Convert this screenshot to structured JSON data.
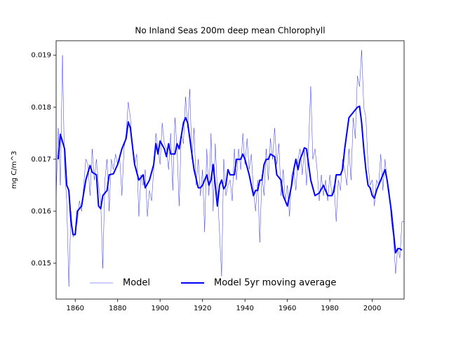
{
  "chart_data": {
    "type": "line",
    "title": "No Inland Seas 200m deep mean Chlorophyll",
    "y_label": "mg C/m^3",
    "xlim": [
      1851,
      2015
    ],
    "xticks": [
      1860,
      1880,
      1900,
      1920,
      1940,
      1960,
      1980,
      2000
    ],
    "ylim": [
      0.01431,
      0.01928
    ],
    "yticks": [
      0.015,
      0.016,
      0.017,
      0.018,
      0.019
    ],
    "legend": "lower center",
    "series": [
      {
        "name": "Model",
        "color": "#0000ff",
        "width": 0.4,
        "x": [
          1851,
          1852,
          1853,
          1854,
          1855,
          1856,
          1857,
          1858,
          1859,
          1860,
          1861,
          1862,
          1863,
          1864,
          1865,
          1866,
          1867,
          1868,
          1869,
          1870,
          1871,
          1872,
          1873,
          1874,
          1875,
          1876,
          1877,
          1878,
          1879,
          1880,
          1881,
          1882,
          1883,
          1884,
          1885,
          1886,
          1887,
          1888,
          1889,
          1890,
          1891,
          1892,
          1893,
          1894,
          1895,
          1896,
          1897,
          1898,
          1899,
          1900,
          1901,
          1902,
          1903,
          1904,
          1905,
          1906,
          1907,
          1908,
          1909,
          1910,
          1911,
          1912,
          1913,
          1914,
          1915,
          1916,
          1917,
          1918,
          1919,
          1920,
          1921,
          1922,
          1923,
          1924,
          1925,
          1926,
          1927,
          1928,
          1929,
          1930,
          1931,
          1932,
          1933,
          1934,
          1935,
          1936,
          1937,
          1938,
          1939,
          1940,
          1941,
          1942,
          1943,
          1944,
          1945,
          1946,
          1947,
          1948,
          1949,
          1950,
          1951,
          1952,
          1953,
          1954,
          1955,
          1956,
          1957,
          1958,
          1959,
          1960,
          1961,
          1962,
          1963,
          1964,
          1965,
          1966,
          1967,
          1968,
          1969,
          1970,
          1971,
          1972,
          1973,
          1974,
          1975,
          1976,
          1977,
          1978,
          1979,
          1980,
          1981,
          1982,
          1983,
          1984,
          1985,
          1986,
          1987,
          1988,
          1989,
          1990,
          1991,
          1992,
          1993,
          1994,
          1995,
          1996,
          1997,
          1998,
          1999,
          2000,
          2001,
          2002,
          2003,
          2004,
          2005,
          2006,
          2007,
          2008,
          2009,
          2010,
          2011,
          2012,
          2013,
          2014,
          2015
        ],
        "values": [
          0.0163,
          0.0176,
          0.0165,
          0.019,
          0.0168,
          0.0162,
          0.01455,
          0.016,
          0.0155,
          0.0156,
          0.0158,
          0.0162,
          0.016,
          0.0165,
          0.017,
          0.0169,
          0.0163,
          0.0172,
          0.0166,
          0.017,
          0.0165,
          0.0162,
          0.0149,
          0.0166,
          0.017,
          0.016,
          0.017,
          0.0168,
          0.0171,
          0.0169,
          0.017,
          0.0163,
          0.0172,
          0.0175,
          0.0181,
          0.0178,
          0.0172,
          0.0169,
          0.0171,
          0.0159,
          0.0167,
          0.0165,
          0.0168,
          0.0159,
          0.0164,
          0.0162,
          0.0168,
          0.0175,
          0.0172,
          0.0169,
          0.0177,
          0.0173,
          0.0172,
          0.0168,
          0.0175,
          0.0164,
          0.0178,
          0.0172,
          0.0161,
          0.0175,
          0.0173,
          0.0182,
          0.0176,
          0.01835,
          0.017,
          0.0176,
          0.0165,
          0.017,
          0.0163,
          0.0168,
          0.0156,
          0.0172,
          0.0163,
          0.0175,
          0.016,
          0.0173,
          0.0164,
          0.0156,
          0.01475,
          0.017,
          0.0163,
          0.0165,
          0.0166,
          0.0162,
          0.0172,
          0.0166,
          0.0172,
          0.0168,
          0.0175,
          0.0169,
          0.0174,
          0.0168,
          0.0171,
          0.0164,
          0.016,
          0.0166,
          0.0154,
          0.0167,
          0.0163,
          0.0172,
          0.0166,
          0.0174,
          0.017,
          0.0176,
          0.0169,
          0.0173,
          0.0163,
          0.0168,
          0.0162,
          0.0165,
          0.0159,
          0.0167,
          0.0168,
          0.0164,
          0.017,
          0.0172,
          0.0167,
          0.0172,
          0.0165,
          0.0173,
          0.0184,
          0.017,
          0.0172,
          0.0168,
          0.0162,
          0.0167,
          0.0163,
          0.0166,
          0.0162,
          0.0167,
          0.0163,
          0.0165,
          0.0158,
          0.0166,
          0.0164,
          0.017,
          0.0168,
          0.0165,
          0.0172,
          0.0166,
          0.0178,
          0.0174,
          0.0186,
          0.0184,
          0.0191,
          0.018,
          0.0178,
          0.0169,
          0.0165,
          0.0166,
          0.0161,
          0.0166,
          0.0165,
          0.0171,
          0.0164,
          0.017,
          0.0166,
          0.0164,
          0.0158,
          0.0155,
          0.0148,
          0.0153,
          0.0151,
          0.0158,
          0.0158
        ]
      },
      {
        "name": "Model 5yr moving average",
        "color": "#0000ff",
        "width": 2,
        "x": [
          1852,
          1853,
          1855,
          1856,
          1857,
          1858,
          1859,
          1860,
          1861,
          1863,
          1865,
          1867,
          1868,
          1870,
          1871,
          1872,
          1873,
          1875,
          1876,
          1878,
          1880,
          1882,
          1884,
          1885,
          1886,
          1888,
          1890,
          1892,
          1893,
          1895,
          1897,
          1898,
          1899,
          1900,
          1902,
          1903,
          1904,
          1905,
          1907,
          1908,
          1909,
          1911,
          1912,
          1913,
          1914,
          1916,
          1918,
          1919,
          1920,
          1922,
          1923,
          1924,
          1925,
          1926,
          1927,
          1928,
          1929,
          1930,
          1931,
          1932,
          1933,
          1935,
          1936,
          1938,
          1939,
          1940,
          1942,
          1944,
          1945,
          1946,
          1947,
          1948,
          1949,
          1950,
          1951,
          1952,
          1954,
          1955,
          1957,
          1958,
          1959,
          1960,
          1962,
          1963,
          1964,
          1965,
          1966,
          1967,
          1968,
          1969,
          1970,
          1971,
          1973,
          1975,
          1977,
          1978,
          1979,
          1981,
          1982,
          1983,
          1984,
          1985,
          1986,
          1987,
          1988,
          1989,
          1991,
          1993,
          1994,
          1995,
          1996,
          1997,
          1998,
          1999,
          2000,
          2001,
          2002,
          2004,
          2005,
          2006,
          2007,
          2008,
          2009,
          2010,
          2011,
          2012,
          2013,
          2014
        ],
        "values": [
          0.017,
          0.01748,
          0.0172,
          0.0165,
          0.0164,
          0.0158,
          0.01555,
          0.01555,
          0.016,
          0.0161,
          0.0166,
          0.01688,
          0.01675,
          0.0167,
          0.0161,
          0.01605,
          0.0163,
          0.0164,
          0.0167,
          0.01672,
          0.0169,
          0.0172,
          0.0174,
          0.01772,
          0.0176,
          0.0169,
          0.0166,
          0.0167,
          0.01645,
          0.0166,
          0.0169,
          0.0173,
          0.0171,
          0.01735,
          0.0172,
          0.01705,
          0.0173,
          0.0171,
          0.0171,
          0.0173,
          0.0172,
          0.0177,
          0.0178,
          0.0177,
          0.0174,
          0.0168,
          0.01645,
          0.01645,
          0.0165,
          0.0167,
          0.0165,
          0.0166,
          0.0169,
          0.0165,
          0.0161,
          0.0165,
          0.0166,
          0.01643,
          0.0165,
          0.0168,
          0.0167,
          0.0167,
          0.017,
          0.017,
          0.0171,
          0.017,
          0.0167,
          0.0163,
          0.0164,
          0.0164,
          0.0166,
          0.0166,
          0.0169,
          0.017,
          0.017,
          0.0171,
          0.01705,
          0.0167,
          0.0166,
          0.0163,
          0.0162,
          0.0161,
          0.0165,
          0.0168,
          0.017,
          0.0168,
          0.017,
          0.0171,
          0.01722,
          0.0172,
          0.0169,
          0.0166,
          0.0163,
          0.01635,
          0.0165,
          0.0164,
          0.0163,
          0.0163,
          0.0164,
          0.0167,
          0.0167,
          0.0167,
          0.0168,
          0.0172,
          0.0175,
          0.0178,
          0.0179,
          0.018,
          0.01802,
          0.0177,
          0.0172,
          0.0168,
          0.0165,
          0.01645,
          0.0163,
          0.01625,
          0.0164,
          0.0166,
          0.0167,
          0.0168,
          0.0166,
          0.0163,
          0.016,
          0.0156,
          0.0152,
          0.01528,
          0.01528,
          0.01525
        ]
      }
    ]
  }
}
